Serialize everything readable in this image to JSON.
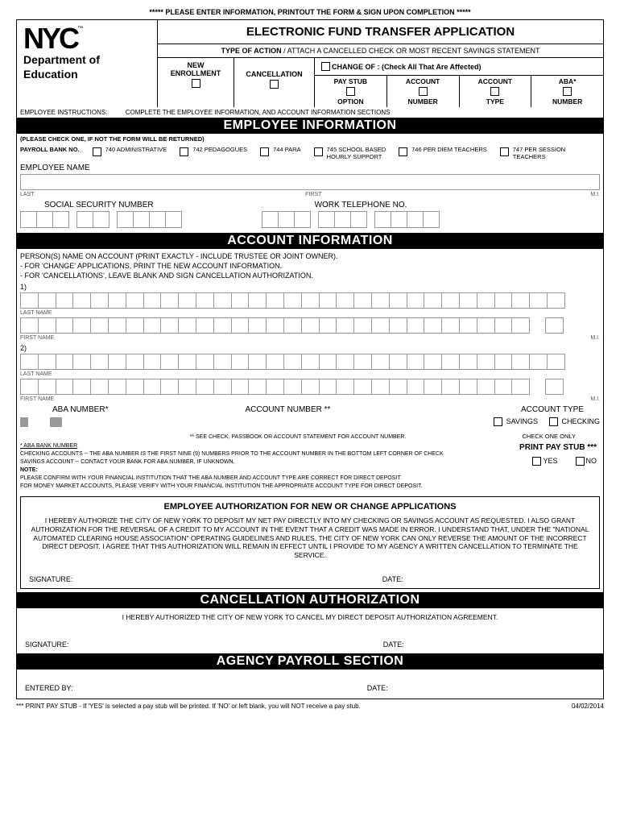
{
  "top_notice": "***** PLEASE ENTER INFORMATION, PRINTOUT THE FORM & SIGN UPON COMPLETION *****",
  "logo": {
    "text": "NYC",
    "tm": "™",
    "dept1": "Department of",
    "dept2": "Education"
  },
  "title": "ELECTRONIC FUND TRANSFER APPLICATION",
  "type_action_label": "TYPE OF ACTION",
  "type_action_instr": "/ ATTACH A CANCELLED CHECK OR MOST RECENT SAVINGS STATEMENT",
  "new_enroll1": "NEW",
  "new_enroll2": "ENROLLMENT",
  "cancellation": "CANCELLATION",
  "change_of": "CHANGE OF : (Check All That Are Affected)",
  "paystub1": "PAY STUB",
  "paystub2": "OPTION",
  "acctnum1": "ACCOUNT",
  "acctnum2": "NUMBER",
  "accttype1": "ACCOUNT",
  "accttype2": "TYPE",
  "aba1": "ABA*",
  "aba2": "NUMBER",
  "emp_instr_label": "EMPLOYEE INSTRUCTIONS:",
  "emp_instr_text": "COMPLETE THE EMPLOYEE INFORMATION, AND ACCOUNT INFORMATION SECTIONS",
  "sec_employee": "EMPLOYEE INFORMATION",
  "check_one_note": "(PLEASE CHECK ONE, IF NOT THE FORM WILL BE RETURNED)",
  "payroll_bank": "PAYROLL BANK NO.",
  "p740": "740 ADMINISTRATIVE",
  "p742": "742 PEDAGOGUES",
  "p744": "744 PARA",
  "p745a": "745 SCHOOL BASED",
  "p745b": "HOURLY SUPPORT",
  "p746": "746 PER DIEM TEACHERS",
  "p747a": "747 PER SESSION",
  "p747b": "TEACHERS",
  "emp_name": "EMPLOYEE NAME",
  "last": "LAST",
  "first": "FIRST",
  "mi": "M.I.",
  "ssn": "SOCIAL SECURITY NUMBER",
  "worktel": "WORK TELEPHONE NO.",
  "sec_account": "ACCOUNT INFORMATION",
  "acct_instr1": "PERSON(S) NAME ON ACCOUNT (PRINT EXACTLY - INCLUDE TRUSTEE OR JOINT OWNER).",
  "acct_instr2": "- FOR 'CHANGE' APPLICATIONS, PRINT THE NEW ACCOUNT INFORMATION.",
  "acct_instr3": "- FOR 'CANCELLATIONS', LEAVE BLANK AND SIGN CANCELLATION AUTHORIZATION.",
  "n1": "1)",
  "n2": "2)",
  "lastname": "LAST NAME",
  "firstname": "FIRST NAME",
  "aba_num": "ABA NUMBER*",
  "acct_num": "ACCOUNT NUMBER **",
  "acct_type": "ACCOUNT TYPE",
  "savings": "SAVINGS",
  "checking": "CHECKING",
  "see_check": "** SEE CHECK, PASSBOOK OR ACCOUNT STATEMENT FOR ACCOUNT NUMBER.",
  "check_one_only": "CHECK ONE ONLY",
  "aba_bank_hdr": "* ABA BANK NUMBER",
  "fine1": "CHECKING ACCOUNTS -- THE ABA NUMBER IS THE FIRST NINE (9) NUMBERS PRIOR TO THE ACCOUNT NUMBER IN THE BOTTOM LEFT CORNER OF CHECK",
  "fine2": "SAVINGS ACCOUNT  -- CONTACT YOUR BANK FOR ABA NUMBER, IF UNKNOWN.",
  "note_label": "NOTE:",
  "fine3": "PLEASE CONFIRM WITH YOUR FINANCIAL INSTITUTION THAT THE ABA NUMBER AND ACCOUNT TYPE ARE CORRECT FOR DIRECT DEPOSIT.",
  "fine4": "FOR MONEY MARKET ACCOUNTS, PLEASE VERIFY WITH YOUR FINANCIAL INSTITUTION THE APPROPRIATE ACCOUNT TYPE FOR DIRECT DEPOSIT.",
  "print_stub": "PRINT PAY STUB ***",
  "yes": "YES",
  "no": "NO",
  "auth_title": "EMPLOYEE AUTHORIZATION FOR NEW OR CHANGE APPLICATIONS",
  "auth_text": "I HEREBY AUTHORIZE THE CITY OF NEW YORK TO DEPOSIT MY NET PAY DIRECTLY INTO MY CHECKING OR SAVINGS ACCOUNT AS REQUESTED. I ALSO GRANT AUTHORIZATION FOR THE REVERSAL OF A CREDIT TO MY ACCOUNT IN THE EVENT THAT A CREDIT WAS MADE IN ERROR. I UNDERSTAND THAT, UNDER THE \"NATIONAL AUTOMATED CLEARING HOUSE ASSOCIATION\" OPERATING GUIDELINES AND RULES, THE CITY OF NEW YORK CAN ONLY REVERSE THE AMOUNT OF THE INCORRECT DIRECT DEPOSIT. I AGREE THAT THIS AUTHORIZATION WILL REMAIN IN EFFECT UNTIL I PROVIDE TO MY AGENCY A WRITTEN CANCELLATION TO TERMINATE THE SERVICE.",
  "sig": "SIGNATURE:",
  "date": "DATE:",
  "sec_cancel": "CANCELLATION AUTHORIZATION",
  "cancel_text": "I HEREBY AUTHORIZED THE CITY OF NEW YORK TO CANCEL MY DIRECT DEPOSIT AUTHORIZATION AGREEMENT.",
  "sec_agency": "AGENCY PAYROLL SECTION",
  "entered_by": "ENTERED BY:",
  "footer_note": "*** PRINT PAY STUB -  If 'YES' is selected a pay stub will be printed. If 'NO' or left blank, you will NOT receive a pay stub.",
  "footer_date": "04/02/2014"
}
